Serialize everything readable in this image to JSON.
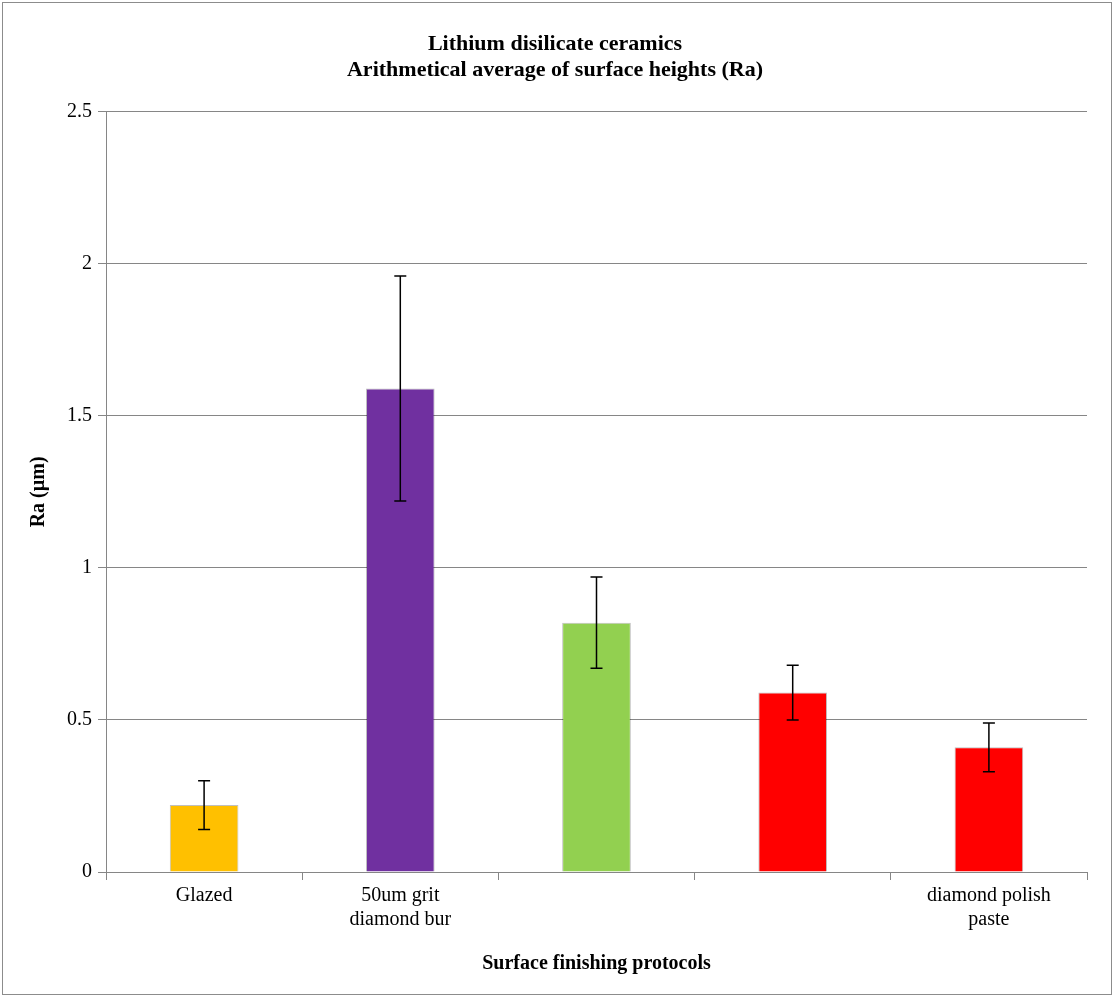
{
  "chart_data": {
    "type": "bar",
    "title": "Lithium disilicate ceramics\nArithmetical average of surface heights (Ra)",
    "xlabel": "Surface finishing protocols",
    "ylabel": "Ra (µm)",
    "categories": [
      "Glazed",
      "50um grit diamond bur",
      null,
      null,
      "diamond polish paste"
    ],
    "values": [
      0.22,
      1.59,
      0.82,
      0.59,
      0.41
    ],
    "colors": [
      "#ffc000",
      "#7030a0",
      "#92d050",
      "#ff0000",
      "#ff0000"
    ],
    "errors": [
      0.08,
      0.37,
      0.15,
      0.09,
      0.08
    ],
    "ylim": [
      0,
      2.5
    ],
    "yticks": [
      0,
      0.5,
      1,
      1.5,
      2,
      2.5
    ],
    "grid": "y"
  }
}
